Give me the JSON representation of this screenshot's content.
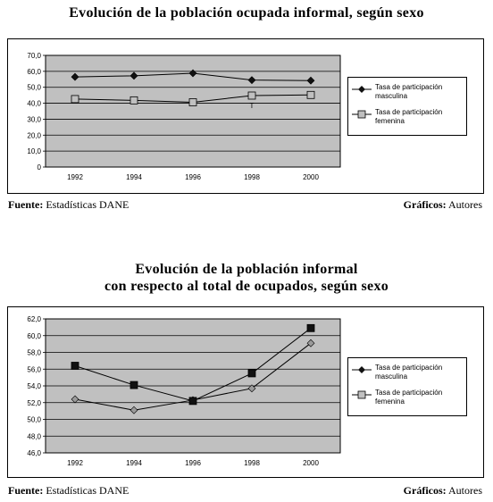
{
  "footer_left_label": "Fuente:",
  "footer_left_value": "Estadísticas DANE",
  "footer_right_label": "Gráficos:",
  "footer_right_value": "Autores",
  "colors": {
    "male_marker": "#111111",
    "female_marker": "#c0c0c0",
    "plot_bg": "#c0c0c0"
  },
  "chart_data": [
    {
      "type": "line",
      "title": "Evolución de la población ocupada informal, según sexo",
      "categories": [
        "1992",
        "1994",
        "1996",
        "1998",
        "2000"
      ],
      "yticks": [
        "70,0",
        "60,0",
        "50,0",
        "40,0",
        "30,0",
        "20,0",
        "10,0",
        "0"
      ],
      "ylim": [
        0,
        70
      ],
      "grid": true,
      "legend_position": "right",
      "annotation": "T",
      "series": [
        {
          "name": "Tasa de participación masculina",
          "marker": "diamond",
          "values": [
            56.5,
            57.2,
            58.8,
            54.5,
            54.2
          ]
        },
        {
          "name": "Tasa de participación femenina",
          "marker": "square",
          "values": [
            42.6,
            41.8,
            40.6,
            44.8,
            45.2
          ]
        }
      ]
    },
    {
      "type": "line",
      "title_line1": "Evolución de la población informal",
      "title_line2": "con respecto al total de ocupados, según sexo",
      "categories": [
        "1992",
        "1994",
        "1996",
        "1998",
        "2000"
      ],
      "yticks": [
        "62,0",
        "60,0",
        "58,0",
        "56,0",
        "54,0",
        "52,0",
        "50,0",
        "48,0",
        "46,0"
      ],
      "ylim": [
        46,
        62
      ],
      "grid": true,
      "legend_position": "right",
      "series": [
        {
          "name": "Tasa de participación masculina",
          "marker": "diamond",
          "values": [
            52.4,
            51.1,
            52.3,
            53.7,
            59.1
          ]
        },
        {
          "name": "Tasa de participación femenina",
          "marker": "square",
          "values": [
            56.4,
            54.1,
            52.2,
            55.5,
            60.9
          ]
        }
      ]
    }
  ]
}
